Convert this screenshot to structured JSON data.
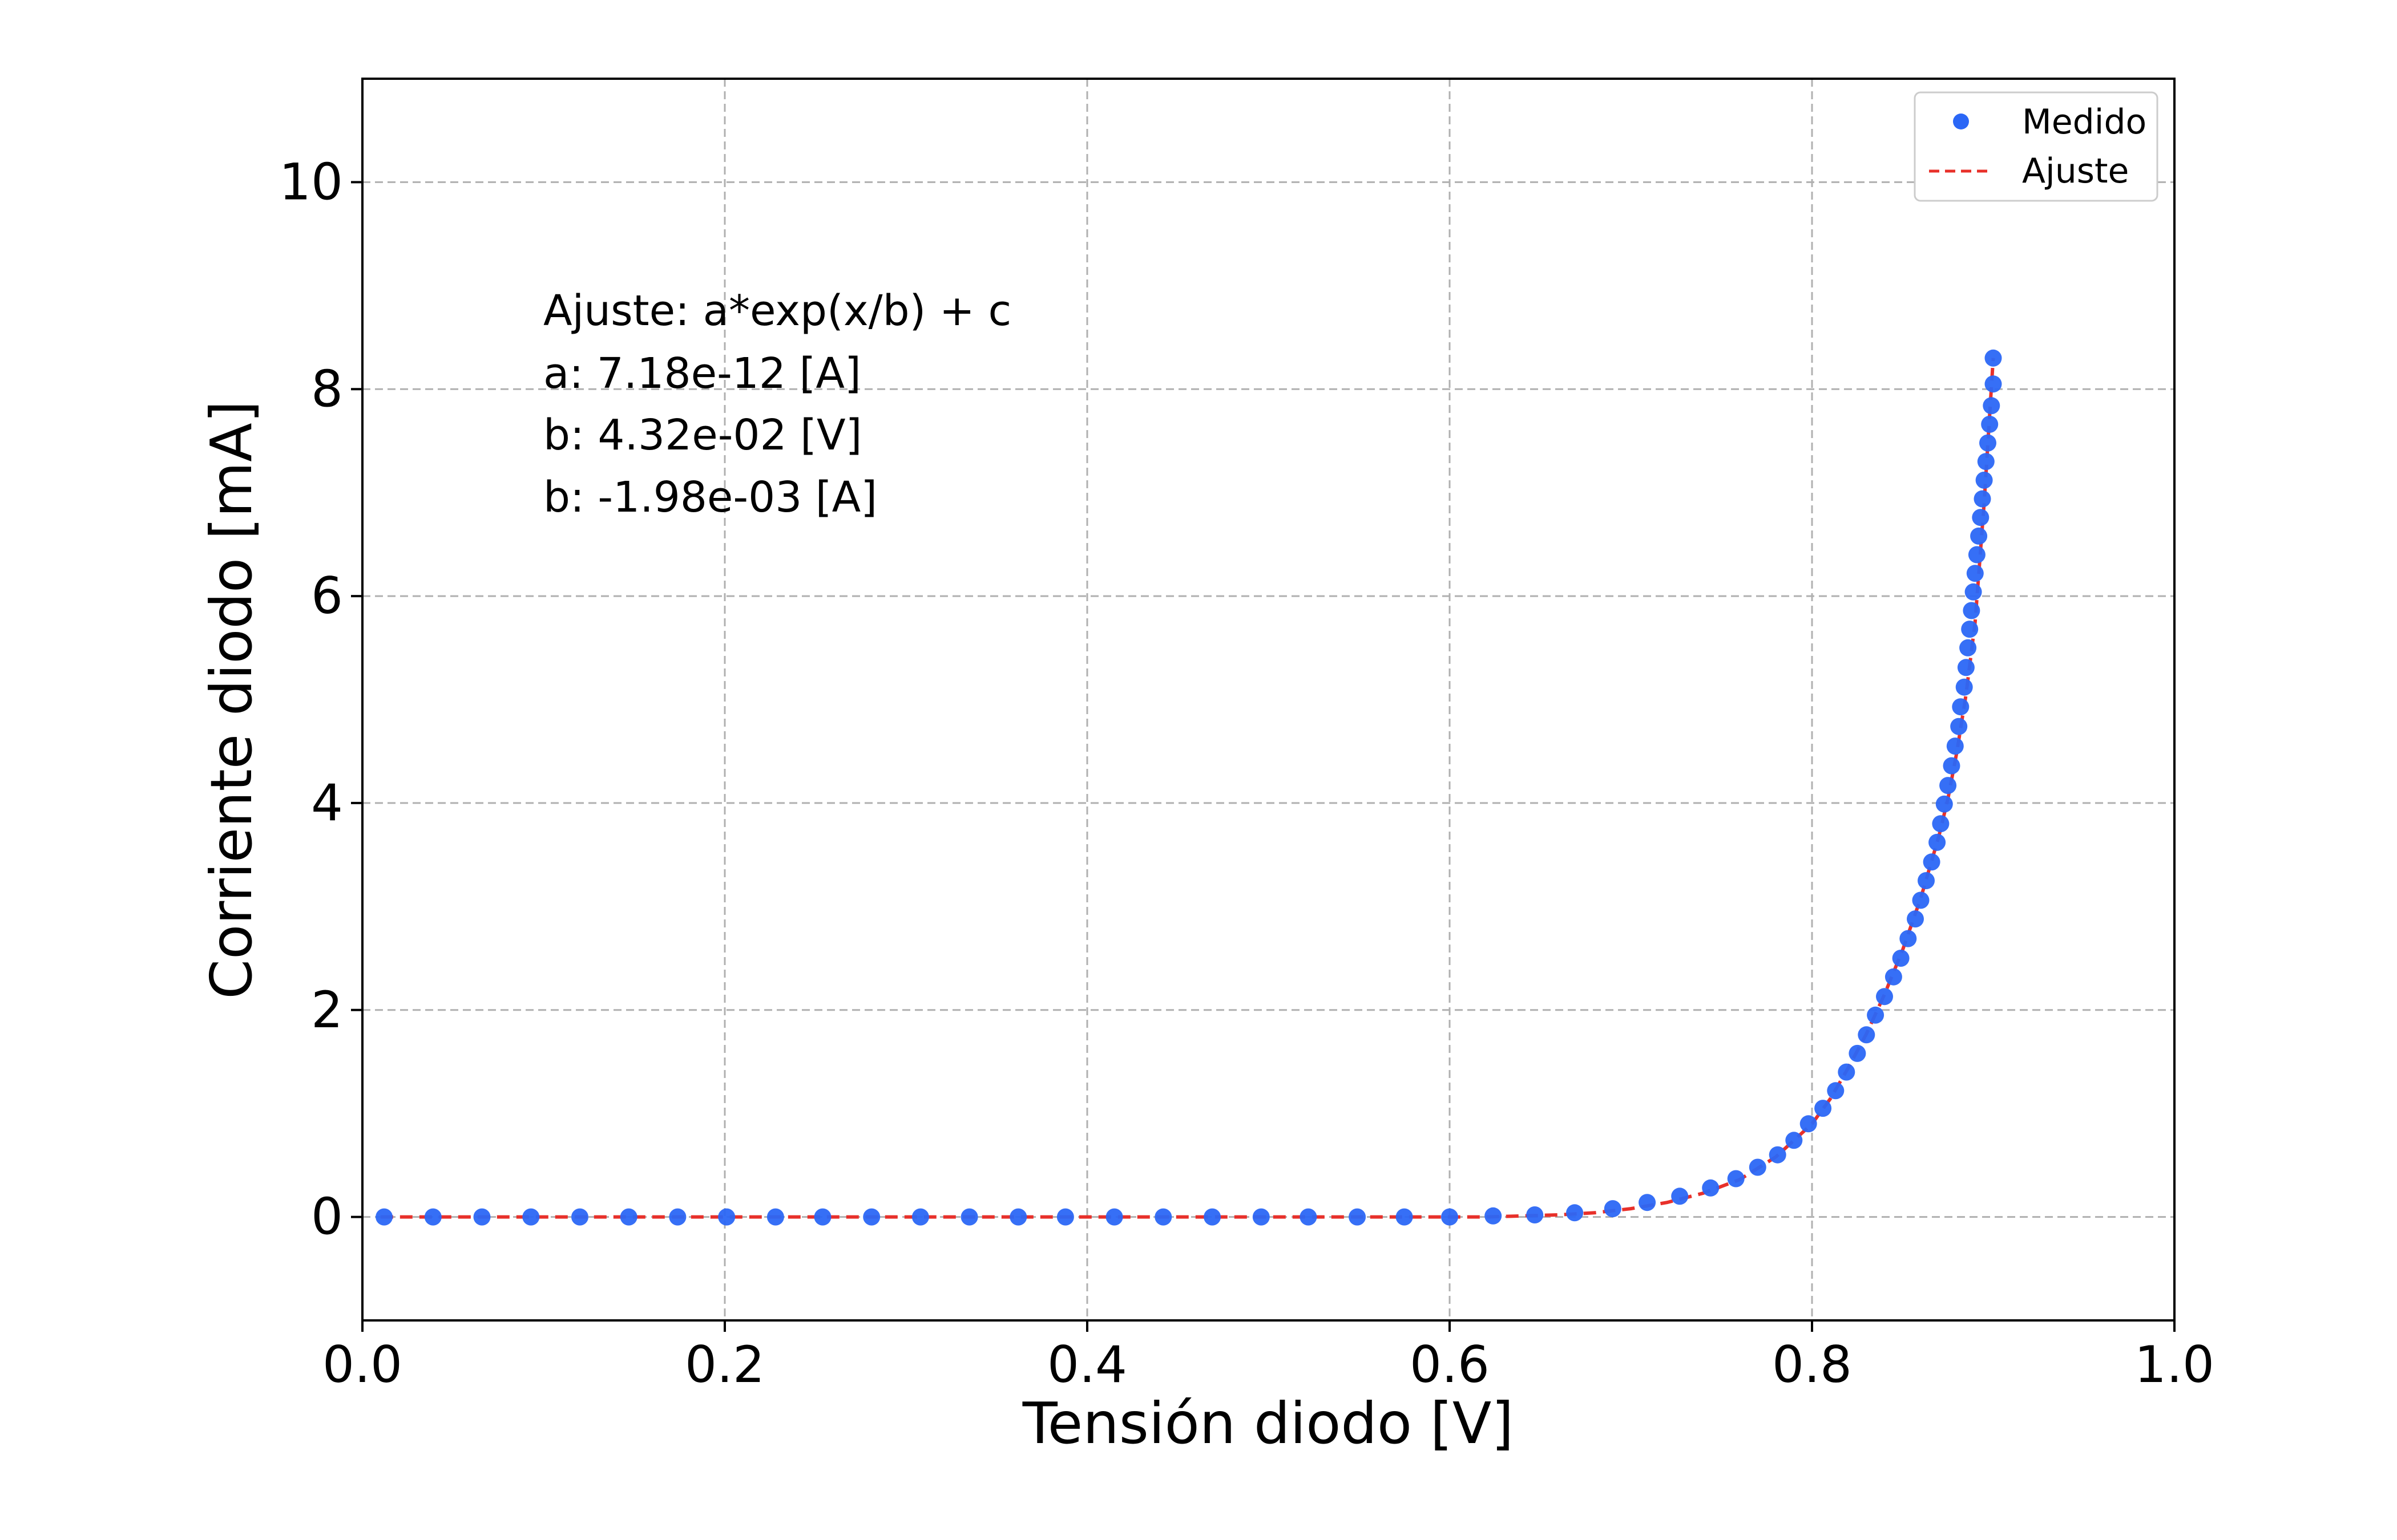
{
  "chart_data": {
    "type": "scatter",
    "title": "",
    "xlabel": "Tensión diodo [V]",
    "ylabel": "Corriente diodo [mA]",
    "xlim": [
      0.0,
      1.0
    ],
    "ylim": [
      -1.0,
      11.0
    ],
    "x_ticks": [
      "0.0",
      "0.2",
      "0.4",
      "0.6",
      "0.8",
      "1.0"
    ],
    "x_tick_values": [
      0.0,
      0.2,
      0.4,
      0.6,
      0.8,
      1.0
    ],
    "y_ticks": [
      "0",
      "2",
      "4",
      "6",
      "8",
      "10"
    ],
    "y_tick_values": [
      0,
      2,
      4,
      6,
      8,
      10
    ],
    "grid": true,
    "legend_position": "top-right",
    "annotation_lines": [
      "Ajuste: a*exp(x/b) + c",
      "a: 7.18e-12 [A]",
      "b: 4.32e-02 [V]",
      "b: -1.98e-03 [A]"
    ],
    "series": [
      {
        "name": "Medido",
        "kind": "scatter",
        "color": "#2b67f6",
        "x": [
          0.012,
          0.039,
          0.066,
          0.093,
          0.12,
          0.147,
          0.174,
          0.201,
          0.228,
          0.254,
          0.281,
          0.308,
          0.335,
          0.362,
          0.388,
          0.415,
          0.442,
          0.469,
          0.496,
          0.522,
          0.549,
          0.575,
          0.6,
          0.624,
          0.647,
          0.669,
          0.69,
          0.709,
          0.727,
          0.744,
          0.758,
          0.77,
          0.781,
          0.79,
          0.798,
          0.806,
          0.813,
          0.819,
          0.825,
          0.83,
          0.835,
          0.84,
          0.845,
          0.849,
          0.853,
          0.857,
          0.86,
          0.863,
          0.866,
          0.869,
          0.871,
          0.873,
          0.875,
          0.877,
          0.879,
          0.881,
          0.882,
          0.884,
          0.885,
          0.886,
          0.887,
          0.888,
          0.889,
          0.89,
          0.891,
          0.892,
          0.893,
          0.894,
          0.895,
          0.896,
          0.897,
          0.898,
          0.899,
          0.9,
          0.9
        ],
        "y": [
          0.0,
          0.0,
          0.0,
          0.0,
          0.0,
          0.0,
          0.0,
          0.0,
          0.0,
          0.0,
          0.0,
          0.0,
          0.0,
          0.0,
          0.0,
          0.0,
          0.0,
          0.0,
          0.0,
          0.0,
          0.0,
          0.0,
          0.0,
          0.01,
          0.02,
          0.04,
          0.08,
          0.14,
          0.2,
          0.28,
          0.37,
          0.48,
          0.6,
          0.74,
          0.9,
          1.05,
          1.22,
          1.4,
          1.58,
          1.76,
          1.95,
          2.13,
          2.32,
          2.5,
          2.69,
          2.88,
          3.06,
          3.25,
          3.43,
          3.62,
          3.8,
          3.99,
          4.17,
          4.36,
          4.55,
          4.74,
          4.93,
          5.12,
          5.31,
          5.5,
          5.68,
          5.86,
          6.04,
          6.22,
          6.4,
          6.58,
          6.76,
          6.94,
          7.12,
          7.3,
          7.48,
          7.66,
          7.84,
          8.05,
          8.3
        ]
      },
      {
        "name": "Ajuste",
        "kind": "line",
        "style": "dashed",
        "color": "#e8302a",
        "x": [
          0.01,
          0.1,
          0.2,
          0.3,
          0.4,
          0.5,
          0.55,
          0.6,
          0.62,
          0.64,
          0.66,
          0.68,
          0.7,
          0.72,
          0.74,
          0.76,
          0.78,
          0.8,
          0.81,
          0.82,
          0.83,
          0.84,
          0.85,
          0.86,
          0.87,
          0.875,
          0.88,
          0.885,
          0.89,
          0.895,
          0.9
        ],
        "y": [
          0.0,
          0.0,
          0.0,
          0.0,
          0.0,
          0.0,
          0.0,
          0.0,
          0.0,
          0.01,
          0.02,
          0.04,
          0.08,
          0.14,
          0.23,
          0.36,
          0.58,
          0.9,
          1.14,
          1.44,
          1.77,
          2.15,
          2.58,
          3.08,
          3.68,
          4.04,
          4.5,
          5.05,
          5.75,
          6.9,
          8.3
        ]
      }
    ]
  }
}
